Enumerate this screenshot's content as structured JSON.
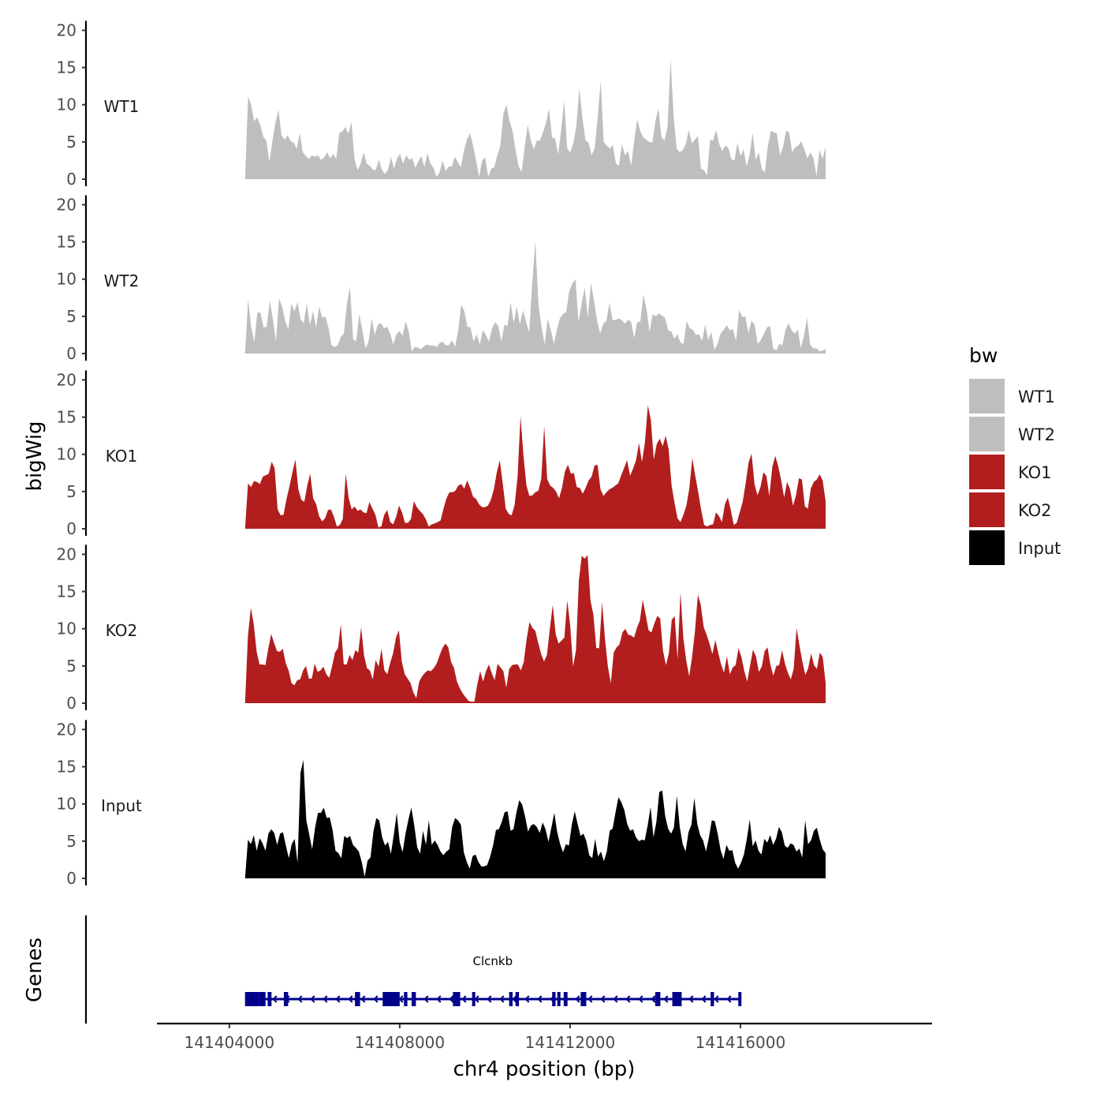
{
  "chart_data": {
    "type": "area",
    "y_axis_title": "bigWig",
    "x_axis_title": "chr4 position (bp)",
    "gene_track_title": "Genes",
    "x_range": [
      141404369,
      141418000
    ],
    "x_axis_limits": [
      141402300,
      141420500
    ],
    "x_ticks": [
      141404000,
      141408000,
      141412000,
      141416000
    ],
    "x_tick_labels": [
      "141404000",
      "141408000",
      "141412000",
      "141416000"
    ],
    "y_range": [
      0,
      20
    ],
    "y_ticks": [
      0,
      5,
      10,
      15,
      20
    ],
    "y_tick_labels": [
      "0",
      "5",
      "10",
      "15",
      "20"
    ],
    "grid": false,
    "legend": {
      "title": "bw",
      "position": "right",
      "entries": [
        {
          "label": "WT1",
          "color": "#BEBEBE"
        },
        {
          "label": "WT2",
          "color": "#BEBEBE"
        },
        {
          "label": "KO1",
          "color": "#B21E1E"
        },
        {
          "label": "KO2",
          "color": "#B21E1E"
        },
        {
          "label": "Input",
          "color": "#000000"
        }
      ]
    },
    "tracks": [
      {
        "name": "WT1",
        "color": "#BEBEBE",
        "values": [
          0,
          11.1,
          10,
          7.8,
          8.3,
          7.3,
          5.7,
          5.2,
          2.3,
          5.1,
          7.6,
          9.3,
          5.9,
          5.3,
          5.9,
          5.1,
          4.9,
          4.1,
          6.2,
          3.6,
          3.1,
          2.7,
          3.2,
          3,
          3.2,
          2.6,
          2.9,
          3.6,
          2.8,
          3.4,
          2.7,
          6.2,
          6.4,
          7,
          6.1,
          7.7,
          2.7,
          1.2,
          2,
          3.6,
          2.1,
          1.8,
          1.3,
          1.2,
          2.6,
          1.3,
          0.7,
          1.2,
          3,
          1.4,
          2.8,
          3.4,
          2.1,
          3.2,
          2.6,
          2.8,
          1.5,
          2.4,
          3.1,
          1.6,
          3.5,
          2.1,
          1.5,
          0.3,
          0.9,
          2.5,
          1.1,
          1.7,
          1.7,
          3,
          2.3,
          1.6,
          3.8,
          5.3,
          6.2,
          4.5,
          2.5,
          0.3,
          2.5,
          2.9,
          0.3,
          1.4,
          1.6,
          3.2,
          4.5,
          8.8,
          10,
          7.8,
          6.5,
          3.9,
          1.7,
          1,
          4.3,
          7.3,
          5.2,
          4,
          5.2,
          5.2,
          6.3,
          7.5,
          9.5,
          5.6,
          5.5,
          3.3,
          6.6,
          10.6,
          4.1,
          3.6,
          4.8,
          7.2,
          12.2,
          8.2,
          5.2,
          4.9,
          3.2,
          4.1,
          8.2,
          13.2,
          5,
          4.5,
          4.1,
          4.6,
          2.1,
          1.8,
          4.7,
          3.2,
          3.8,
          1.8,
          5,
          8,
          6.5,
          5.6,
          5.3,
          5,
          4.9,
          7.8,
          9.5,
          5.6,
          5.2,
          7.1,
          16.1,
          8.4,
          4.1,
          3.6,
          3.9,
          4.7,
          6.6,
          4.8,
          5.3,
          5.8,
          1.4,
          1.2,
          0.5,
          5.3,
          5.2,
          6.6,
          4.7,
          3.8,
          4.5,
          4.2,
          2.7,
          2.5,
          4.9,
          3.1,
          4,
          1.7,
          3.3,
          6.2,
          2.6,
          3.6,
          1.4,
          0.9,
          4.4,
          6.5,
          6.3,
          6.1,
          3.2,
          4.3,
          6.5,
          6.3,
          3.6,
          4.3,
          4.5,
          5.1,
          4,
          2.8,
          3.6,
          2.8,
          0.4,
          3.9,
          2.7,
          4.4
        ]
      },
      {
        "name": "WT2",
        "color": "#BEBEBE",
        "values": [
          0,
          7.3,
          3.5,
          1.6,
          5.5,
          5.5,
          3.5,
          3.6,
          7.1,
          4.7,
          1.6,
          7.4,
          6.3,
          4.4,
          3.2,
          6.7,
          5.7,
          6.9,
          4.6,
          4.1,
          6.7,
          3.8,
          5.7,
          3.5,
          6.3,
          4.8,
          5,
          3.5,
          1.1,
          0.9,
          1.1,
          2.2,
          2.7,
          6.7,
          9,
          1.9,
          1.7,
          5.3,
          3.1,
          0.7,
          1.6,
          4.7,
          2.5,
          3.9,
          4.1,
          3.4,
          3.6,
          2.7,
          1.2,
          2.6,
          3,
          2.4,
          4.3,
          3,
          0.3,
          0.9,
          0.8,
          0.6,
          1,
          1.2,
          1.1,
          1.1,
          0.9,
          1.4,
          1.6,
          1.1,
          1.1,
          1.8,
          0.9,
          3,
          6.6,
          5.7,
          3.6,
          3.5,
          1.6,
          2.6,
          1.2,
          3.1,
          2.5,
          1.6,
          3.4,
          4.2,
          3.7,
          1.6,
          3.9,
          3.7,
          6.9,
          4.1,
          6.3,
          3.9,
          5.8,
          4.3,
          2.8,
          9.5,
          15.1,
          6.7,
          3.6,
          1.2,
          4.7,
          3.2,
          1.3,
          3.2,
          4.8,
          5.3,
          5.6,
          8.4,
          9.4,
          10,
          4.2,
          6.7,
          8.9,
          4.8,
          9.5,
          7.1,
          4.4,
          2.7,
          4,
          4.4,
          6.8,
          4.5,
          4.5,
          4.7,
          4.5,
          4,
          4.5,
          4.3,
          2.1,
          4.2,
          4.3,
          7.9,
          6,
          2.9,
          5.3,
          5,
          5.4,
          5.1,
          4.8,
          3.1,
          3,
          2,
          2.6,
          1.5,
          1.3,
          4.4,
          3.4,
          3.2,
          2.5,
          2.6,
          1.7,
          3.9,
          1.8,
          2.9,
          0.5,
          1.3,
          2.7,
          3.2,
          3.8,
          3.1,
          3.3,
          1.7,
          5.9,
          4.9,
          5,
          2.7,
          4.4,
          3.9,
          1.3,
          1.8,
          2.6,
          3.5,
          3.7,
          0.7,
          0.4,
          1.3,
          1.1,
          3.2,
          4.1,
          3.1,
          2.7,
          3.2,
          0.7,
          2.4,
          4.8,
          1.2,
          0.7,
          0.7,
          0.3,
          0.4,
          0.6
        ]
      },
      {
        "name": "KO1",
        "color": "#B21E1E",
        "values": [
          0,
          6.1,
          5.6,
          6.4,
          6.3,
          6,
          7,
          7.2,
          7.4,
          9,
          8.1,
          2.6,
          1.8,
          1.9,
          4,
          5.7,
          7.6,
          9.3,
          5.3,
          3.9,
          3.6,
          5.8,
          7.4,
          4.1,
          3.3,
          1.7,
          1,
          1.4,
          2.5,
          2.6,
          1.6,
          0.3,
          0.5,
          1.3,
          7.4,
          4.1,
          2.6,
          3,
          2.4,
          2.6,
          2.2,
          2.1,
          3.6,
          2.7,
          1.9,
          0.2,
          0.3,
          1.9,
          2.5,
          0.9,
          0.6,
          1.6,
          3.1,
          2.2,
          0.8,
          0.8,
          1.3,
          3.7,
          2.9,
          2.4,
          2,
          1.3,
          0.3,
          0.6,
          0.7,
          0.9,
          1.1,
          2.7,
          4.1,
          4.9,
          4.9,
          5.1,
          5.8,
          6,
          5.4,
          6.5,
          5.5,
          4.3,
          4,
          3.3,
          2.9,
          2.9,
          3.1,
          3.9,
          5.3,
          7.6,
          9.2,
          6.1,
          2.7,
          2,
          1.8,
          3.2,
          6.9,
          15.1,
          9.8,
          5.8,
          4.4,
          4.5,
          4.9,
          5.1,
          6.7,
          13.8,
          6.7,
          5.8,
          5.5,
          5,
          4.1,
          5.5,
          7.7,
          8.6,
          7.4,
          7.5,
          5.6,
          5.5,
          4.7,
          5.5,
          6.5,
          7,
          8.5,
          8.6,
          5.3,
          4.4,
          4.9,
          5.3,
          5.5,
          5.8,
          6.1,
          7.2,
          8.2,
          9.2,
          7.1,
          8.1,
          9.2,
          11.5,
          9,
          11.6,
          16.6,
          14.6,
          9.3,
          11.4,
          12.1,
          11.1,
          12.5,
          10.7,
          5.8,
          3.5,
          1.4,
          0.9,
          1.9,
          3.1,
          5.5,
          9.5,
          7.1,
          4.9,
          2.5,
          0.5,
          0.3,
          0.5,
          0.6,
          2.2,
          1.7,
          0.9,
          3.3,
          4.2,
          2.5,
          0.5,
          0.8,
          2.2,
          3.6,
          6.1,
          8.9,
          10.1,
          6,
          4.5,
          5.6,
          7.6,
          7.1,
          4.4,
          8.3,
          9.8,
          8.4,
          6.5,
          4.2,
          6.3,
          5.3,
          3.1,
          4.5,
          6.8,
          6.6,
          3,
          2.7,
          5.4,
          6.3,
          6.6,
          7.3,
          6.5,
          3.7
        ]
      },
      {
        "name": "KO2",
        "color": "#B21E1E",
        "values": [
          0,
          9.1,
          12.8,
          10.6,
          6.9,
          5.2,
          5.2,
          5.1,
          7.3,
          9.3,
          8.1,
          7,
          6.9,
          7.3,
          5.4,
          4.4,
          2.7,
          2.4,
          3.1,
          3.2,
          4.4,
          5,
          3.3,
          3.3,
          5.3,
          4.2,
          4.4,
          4.9,
          3.9,
          3.4,
          5,
          6.8,
          7.4,
          10.6,
          5.2,
          5.2,
          6.5,
          5.8,
          7.1,
          6.8,
          10.2,
          6.4,
          4.7,
          4.4,
          3.2,
          5.8,
          4.9,
          7.3,
          4.4,
          3.9,
          5.4,
          6.7,
          8.8,
          9.8,
          5.6,
          3.9,
          3.3,
          2.7,
          1.4,
          0.7,
          2.9,
          3.6,
          4.1,
          4.4,
          4.3,
          4.7,
          5.3,
          6.4,
          7.4,
          8,
          7.5,
          5.5,
          4.7,
          2.9,
          2,
          1.3,
          0.8,
          0.3,
          0.2,
          0.2,
          2.5,
          4.3,
          2.9,
          4.3,
          5.2,
          4,
          3.1,
          5.3,
          4.8,
          4.3,
          2.1,
          4.6,
          5.1,
          5.2,
          5.2,
          4.4,
          5.5,
          8.6,
          10.9,
          10.1,
          9.7,
          8.1,
          6.6,
          5.6,
          6.5,
          10,
          13.2,
          9.3,
          8,
          8.4,
          8.8,
          13.8,
          10.5,
          4.9,
          7.1,
          16.5,
          19.8,
          19.4,
          19.9,
          13.8,
          11.9,
          7.4,
          7.4,
          13.6,
          8.6,
          4.9,
          2.7,
          6.8,
          7.5,
          7.9,
          9.5,
          10,
          9.2,
          9.1,
          8.8,
          10.1,
          11.1,
          13.9,
          11.9,
          9.8,
          9.5,
          10.7,
          11.7,
          11.4,
          7,
          5.1,
          6.7,
          11.2,
          11.7,
          5.9,
          14.9,
          8.7,
          5.7,
          3.6,
          6.2,
          9.7,
          14.6,
          13.2,
          10.2,
          9.2,
          8,
          6.6,
          8.5,
          6.8,
          5.2,
          4.1,
          6.3,
          3.9,
          4.8,
          5.1,
          7.4,
          6.2,
          4.3,
          2.9,
          5.1,
          7.2,
          6.3,
          4.2,
          4.9,
          7,
          7.5,
          5.1,
          3.7,
          5,
          5.1,
          7.1,
          5.3,
          4.1,
          3.2,
          4.6,
          10.1,
          7.7,
          5.6,
          3.8,
          4.7,
          6.7,
          5.1,
          4.6,
          6.8,
          6.2,
          2.7
        ]
      },
      {
        "name": "Input",
        "color": "#000000",
        "values": [
          0,
          5.2,
          4.6,
          5.8,
          3.7,
          5.4,
          4.7,
          3.7,
          6,
          6.6,
          6.1,
          4.5,
          6,
          6.2,
          4.4,
          2.7,
          4.6,
          5.3,
          2.1,
          14.2,
          15.9,
          7.8,
          5.9,
          3.9,
          6.8,
          8.8,
          8.8,
          9.5,
          8.1,
          8.2,
          6.5,
          3.7,
          3.4,
          2.7,
          5.7,
          5.4,
          5.7,
          4.5,
          4.1,
          3.6,
          2.2,
          0.2,
          2.4,
          2.8,
          6.3,
          8.1,
          7.8,
          5.5,
          4.4,
          4.9,
          3.3,
          5.9,
          8.8,
          4.9,
          3.5,
          6,
          7.9,
          9.5,
          7.1,
          4.2,
          3.3,
          6.4,
          4.5,
          7.8,
          4.5,
          5.1,
          4.5,
          3.6,
          3.1,
          3.6,
          3.9,
          6.9,
          8.1,
          7.8,
          7.2,
          3.5,
          2.2,
          1.3,
          3,
          3.2,
          2.2,
          1.6,
          1.6,
          1.8,
          2.9,
          4.4,
          6.5,
          6.6,
          7.6,
          8.9,
          9,
          6.4,
          6.6,
          8.8,
          10.5,
          9.9,
          8.3,
          6.3,
          7.1,
          7.3,
          6.9,
          6.1,
          7.5,
          6.6,
          4.9,
          6.8,
          8.8,
          6.2,
          4.6,
          3.5,
          4.6,
          4.4,
          7.2,
          9,
          7.3,
          5.7,
          6,
          5,
          3.1,
          2.7,
          5.3,
          2.9,
          3.6,
          2.3,
          3.6,
          6.4,
          6.7,
          8.9,
          10.9,
          10.2,
          9.2,
          7.3,
          6.4,
          6.6,
          5.5,
          5,
          5.2,
          5.1,
          7.1,
          9.6,
          5.5,
          7.6,
          11.6,
          11.8,
          8.4,
          6.7,
          6,
          6.8,
          11.1,
          6.9,
          4.6,
          3.6,
          6.2,
          7.2,
          10.8,
          7.3,
          5.8,
          5.1,
          3.6,
          5.5,
          7.8,
          7.7,
          6,
          3.8,
          2.6,
          4.5,
          3.7,
          3.8,
          2.1,
          1.3,
          2.1,
          3.2,
          5.3,
          7.9,
          4.3,
          5.1,
          3.7,
          3.2,
          5.3,
          4.8,
          5.8,
          4.5,
          5.3,
          6.9,
          6.2,
          4.4,
          4.1,
          4.7,
          4.5,
          3.6,
          4,
          2.8,
          7.8,
          4.6,
          5.1,
          6.4,
          6.8,
          5.2,
          3.9,
          3.4
        ]
      }
    ],
    "genes": [
      {
        "name": "Clcnkb",
        "strand": "-",
        "color": "#00008B",
        "start": 141404369,
        "end": 141416000,
        "exons": [
          [
            141404369,
            141404700
          ],
          [
            141404700,
            141404850
          ],
          [
            141404900,
            141404990
          ],
          [
            141405280,
            141405380
          ],
          [
            141406950,
            141407070
          ],
          [
            141407600,
            141408000
          ],
          [
            141408100,
            141408180
          ],
          [
            141408280,
            141408380
          ],
          [
            141409250,
            141409420
          ],
          [
            141409700,
            141409770
          ],
          [
            141410570,
            141410650
          ],
          [
            141410720,
            141410800
          ],
          [
            141411580,
            141411660
          ],
          [
            141411700,
            141411760
          ],
          [
            141411850,
            141411940
          ],
          [
            141412250,
            141412380
          ],
          [
            141414000,
            141414120
          ],
          [
            141414400,
            141414620
          ],
          [
            141415300,
            141415380
          ],
          [
            141415950,
            141416000
          ]
        ]
      }
    ]
  }
}
